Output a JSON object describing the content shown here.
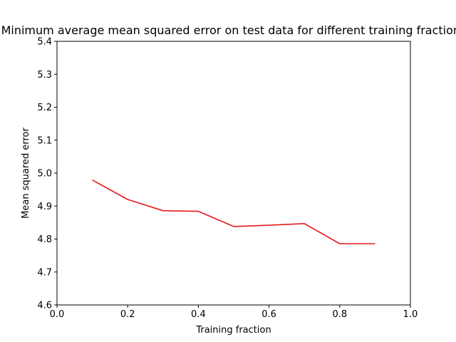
{
  "chart_data": {
    "type": "line",
    "title": "Minimum average mean squared error on test data for different training fractions",
    "xlabel": "Training fraction",
    "ylabel": "Mean squared error",
    "xlim": [
      0.0,
      1.0
    ],
    "ylim": [
      4.6,
      5.4
    ],
    "xticks": [
      "0.0",
      "0.2",
      "0.4",
      "0.6",
      "0.8",
      "1.0"
    ],
    "yticks": [
      "4.6",
      "4.7",
      "4.8",
      "4.9",
      "5.0",
      "5.1",
      "5.2",
      "5.3",
      "5.4"
    ],
    "grid": false,
    "series": [
      {
        "color": "#e41a1c",
        "x": [
          0.1,
          0.2,
          0.3,
          0.4,
          0.5,
          0.6,
          0.7,
          0.8,
          0.9
        ],
        "y": [
          4.979,
          4.92,
          4.886,
          4.884,
          4.838,
          4.842,
          4.847,
          4.786,
          4.786
        ]
      }
    ]
  }
}
